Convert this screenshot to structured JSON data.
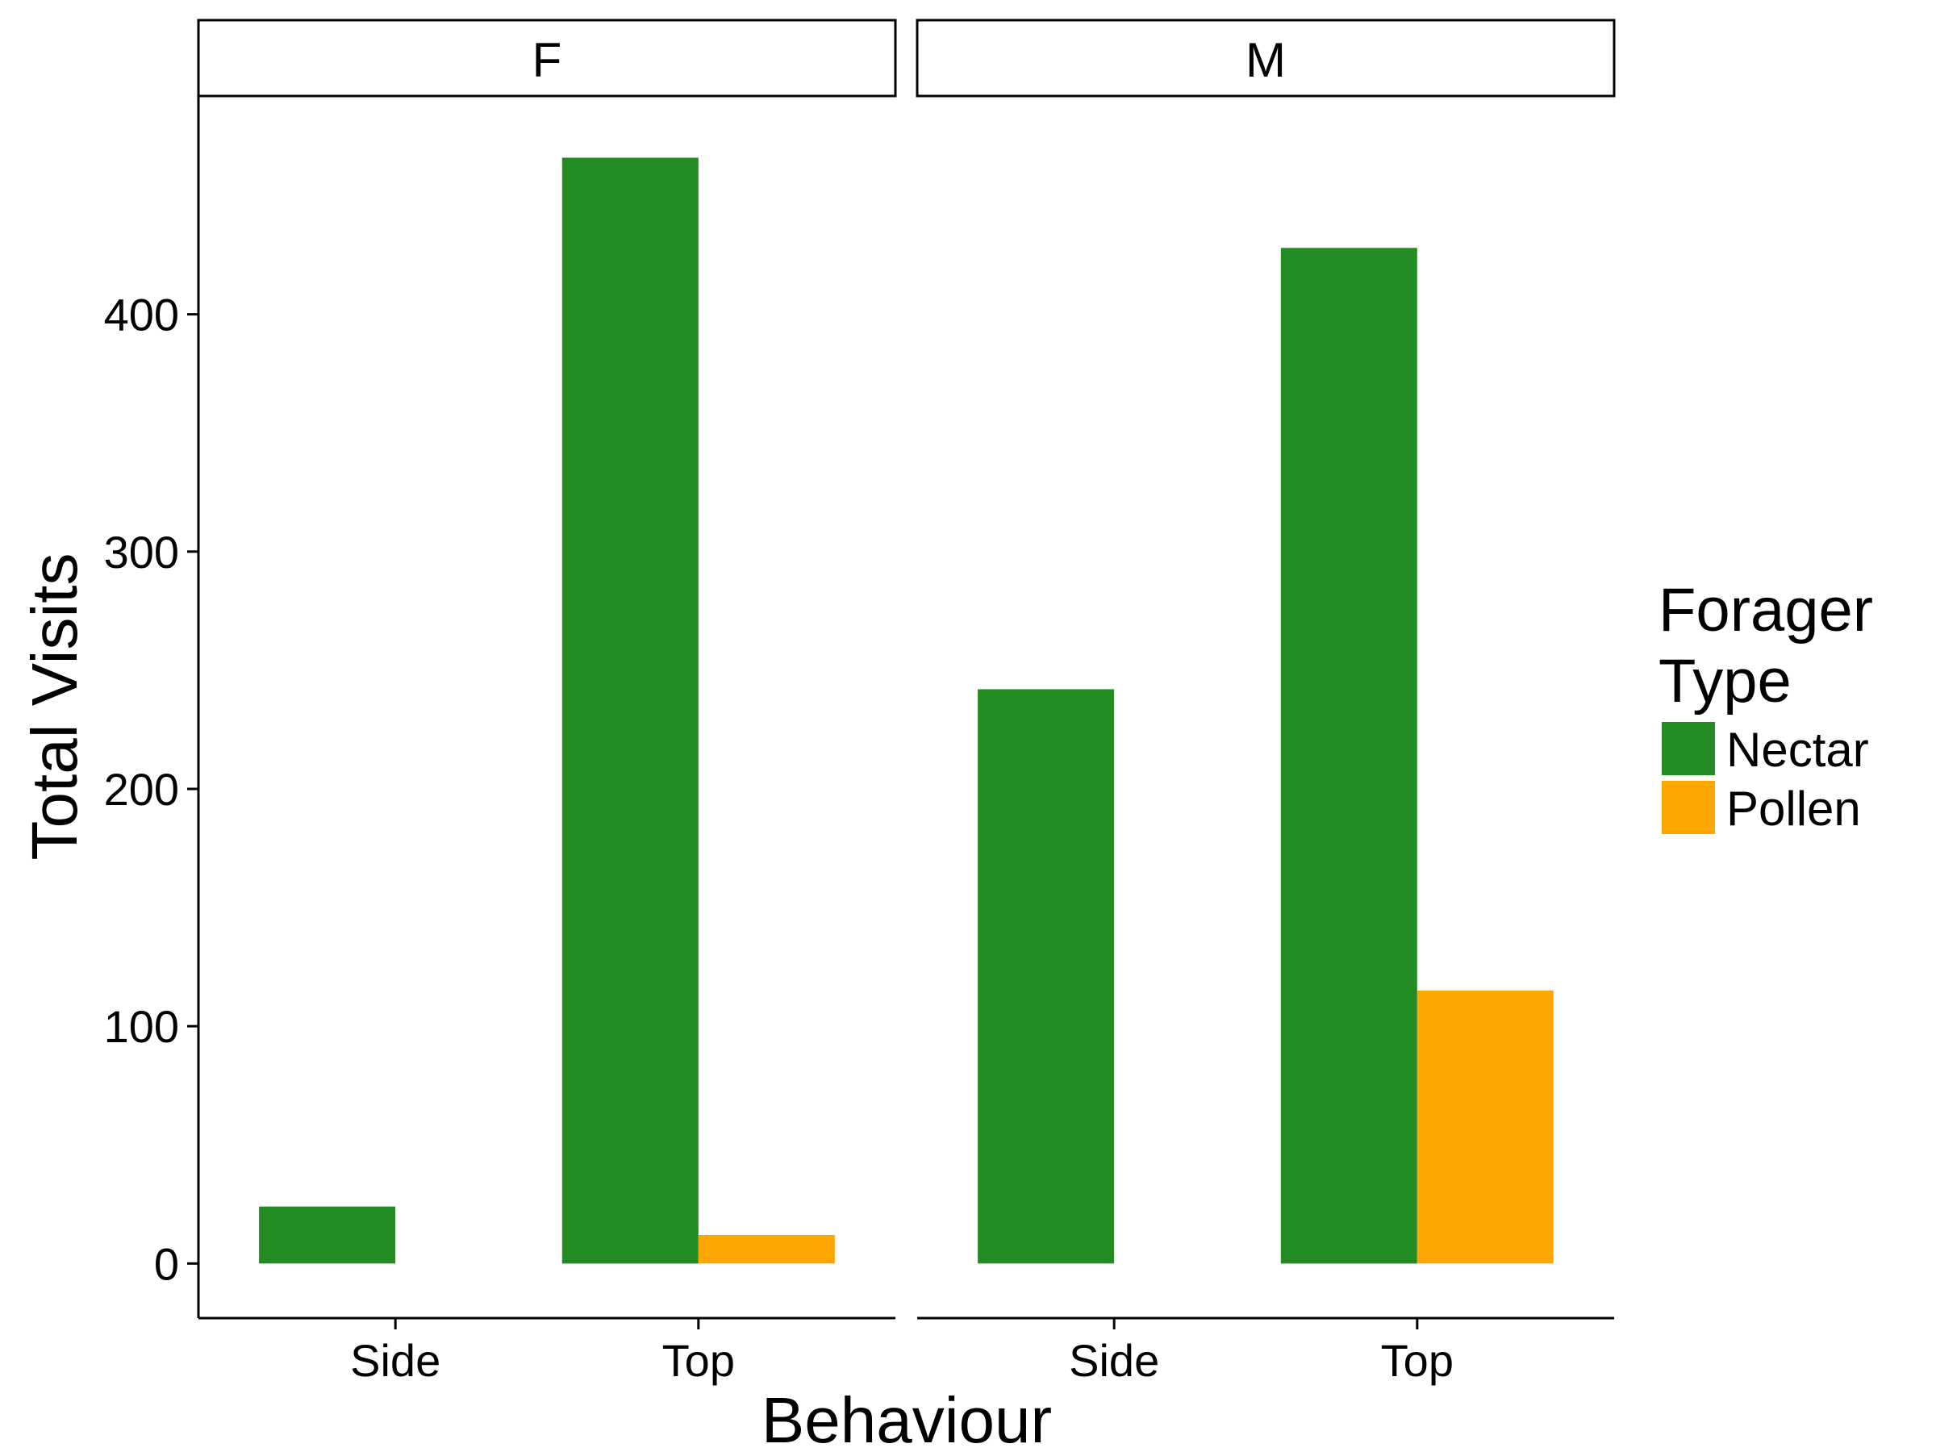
{
  "chart_data": {
    "type": "bar",
    "xlabel": "Behaviour",
    "ylabel": "Total Visits",
    "ylim": [
      -23,
      492
    ],
    "yticks": [
      0,
      100,
      200,
      300,
      400
    ],
    "categories": [
      "Side",
      "Top"
    ],
    "legend": {
      "title_lines": [
        "Forager",
        "Type"
      ],
      "position": "right"
    },
    "series": [
      {
        "name": "Nectar",
        "color": "#228B22"
      },
      {
        "name": "Pollen",
        "color": "#FFA500"
      }
    ],
    "panels": [
      {
        "label": "F",
        "bars": [
          {
            "category": "Side",
            "series": "Nectar",
            "value": 24
          },
          {
            "category": "Top",
            "series": "Nectar",
            "value": 466
          },
          {
            "category": "Top",
            "series": "Pollen",
            "value": 12
          }
        ]
      },
      {
        "label": "M",
        "bars": [
          {
            "category": "Side",
            "series": "Nectar",
            "value": 242
          },
          {
            "category": "Top",
            "series": "Nectar",
            "value": 428
          },
          {
            "category": "Top",
            "series": "Pollen",
            "value": 115
          }
        ]
      }
    ]
  }
}
